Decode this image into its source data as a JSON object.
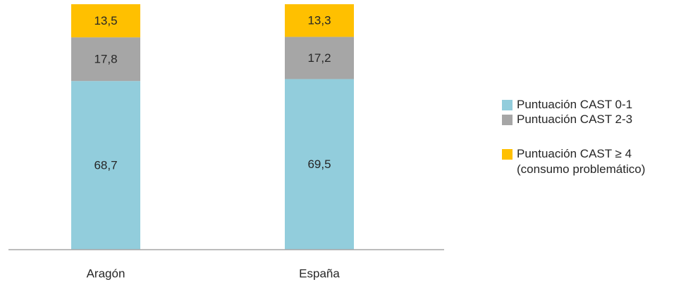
{
  "chart_data": {
    "type": "bar",
    "stacked": true,
    "orientation": "vertical",
    "categories": [
      "Aragón",
      "España"
    ],
    "series": [
      {
        "name": "Puntuación CAST 0-1",
        "values": [
          68.7,
          69.5
        ],
        "labels": [
          "68,7",
          "69,5"
        ],
        "color": "#92cddc"
      },
      {
        "name": "Puntuación CAST 2-3",
        "values": [
          17.8,
          17.2
        ],
        "labels": [
          "17,8",
          "17,2"
        ],
        "color": "#a6a6a6"
      },
      {
        "name": "Puntuación CAST ≥ 4\n(consumo problemático)",
        "values": [
          13.5,
          13.3
        ],
        "labels": [
          "13,5",
          "13,3"
        ],
        "color": "#ffc000"
      }
    ],
    "ylim": [
      0,
      100
    ],
    "grid": false,
    "legend_position": "right"
  }
}
